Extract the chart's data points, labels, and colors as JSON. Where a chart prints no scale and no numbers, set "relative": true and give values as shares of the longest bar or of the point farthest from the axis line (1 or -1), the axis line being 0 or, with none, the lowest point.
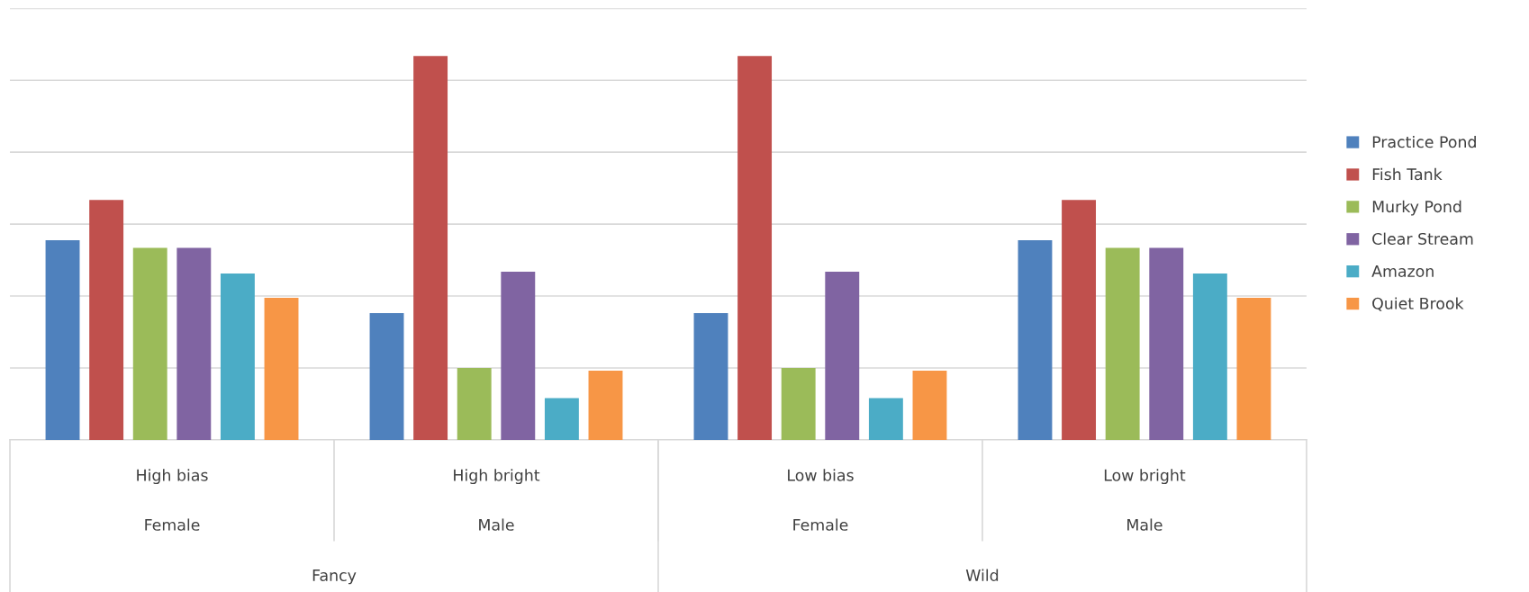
{
  "chart_data": {
    "type": "bar",
    "relative": true,
    "grid": "y",
    "legend": "right",
    "categories": [
      "High bias",
      "High bright",
      "Low bias",
      "Low bright"
    ],
    "series": [
      {
        "name": "Practice Pond",
        "color": "#4f81bd",
        "values": [
          0.52,
          0.33,
          0.33,
          0.52
        ]
      },
      {
        "name": "Fish Tank",
        "color": "#c0504d",
        "values": [
          0.625,
          1,
          1,
          0.625
        ]
      },
      {
        "name": "Murky Pond",
        "color": "#9bbb59",
        "values": [
          0.5,
          0.187,
          0.187,
          0.5
        ]
      },
      {
        "name": "Clear Stream",
        "color": "#8064a2",
        "values": [
          0.5,
          0.438,
          0.438,
          0.5
        ]
      },
      {
        "name": "Amazon",
        "color": "#4bacc6",
        "values": [
          0.433,
          0.109,
          0.109,
          0.433
        ]
      },
      {
        "name": "Quiet Brook",
        "color": "#f79646",
        "values": [
          0.37,
          0.18,
          0.18,
          0.37
        ]
      }
    ],
    "annotations": [
      "Female",
      "Male",
      "Female",
      "Male",
      "Fancy",
      "Wild"
    ]
  }
}
